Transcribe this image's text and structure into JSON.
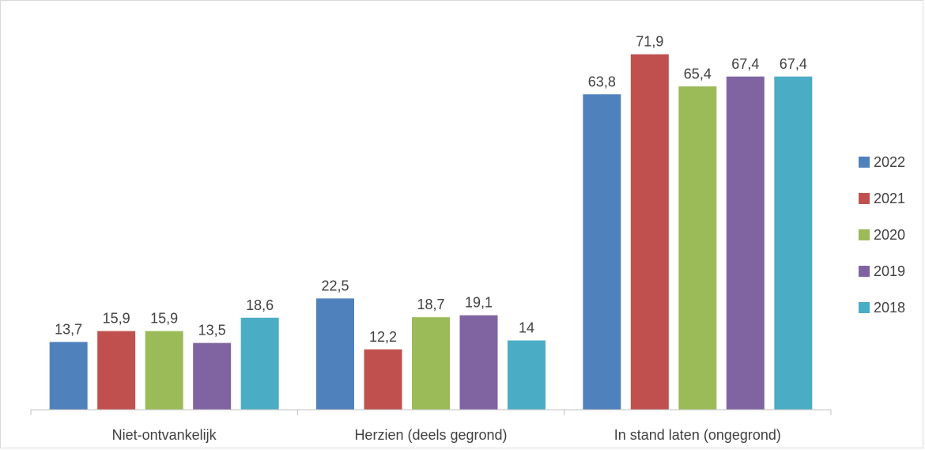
{
  "chart_data": {
    "type": "bar",
    "title": "",
    "xlabel": "",
    "ylabel": "",
    "ylim": [
      0,
      80
    ],
    "grid": false,
    "legend_position": "right",
    "categories": [
      "Niet-ontvankelijk",
      "Herzien (deels gegrond)",
      "In stand laten (ongegrond)"
    ],
    "series": [
      {
        "name": "2022",
        "color": "#4f81bd",
        "values": [
          13.7,
          22.5,
          63.8
        ],
        "labels": [
          "13,7",
          "22,5",
          "63,8"
        ]
      },
      {
        "name": "2021",
        "color": "#c0504d",
        "values": [
          15.9,
          12.2,
          71.9
        ],
        "labels": [
          "15,9",
          "12,2",
          "71,9"
        ]
      },
      {
        "name": "2020",
        "color": "#9bbb59",
        "values": [
          15.9,
          18.7,
          65.4
        ],
        "labels": [
          "15,9",
          "18,7",
          "65,4"
        ]
      },
      {
        "name": "2019",
        "color": "#8064a2",
        "values": [
          13.5,
          19.1,
          67.4
        ],
        "labels": [
          "13,5",
          "19,1",
          "67,4"
        ]
      },
      {
        "name": "2018",
        "color": "#4bacc6",
        "values": [
          18.6,
          14,
          67.4
        ],
        "labels": [
          "18,6",
          "14",
          "67,4"
        ]
      }
    ]
  },
  "colors": {
    "axis": "#bfbfbf",
    "text": "#404040",
    "border": "#d9d9d9"
  }
}
